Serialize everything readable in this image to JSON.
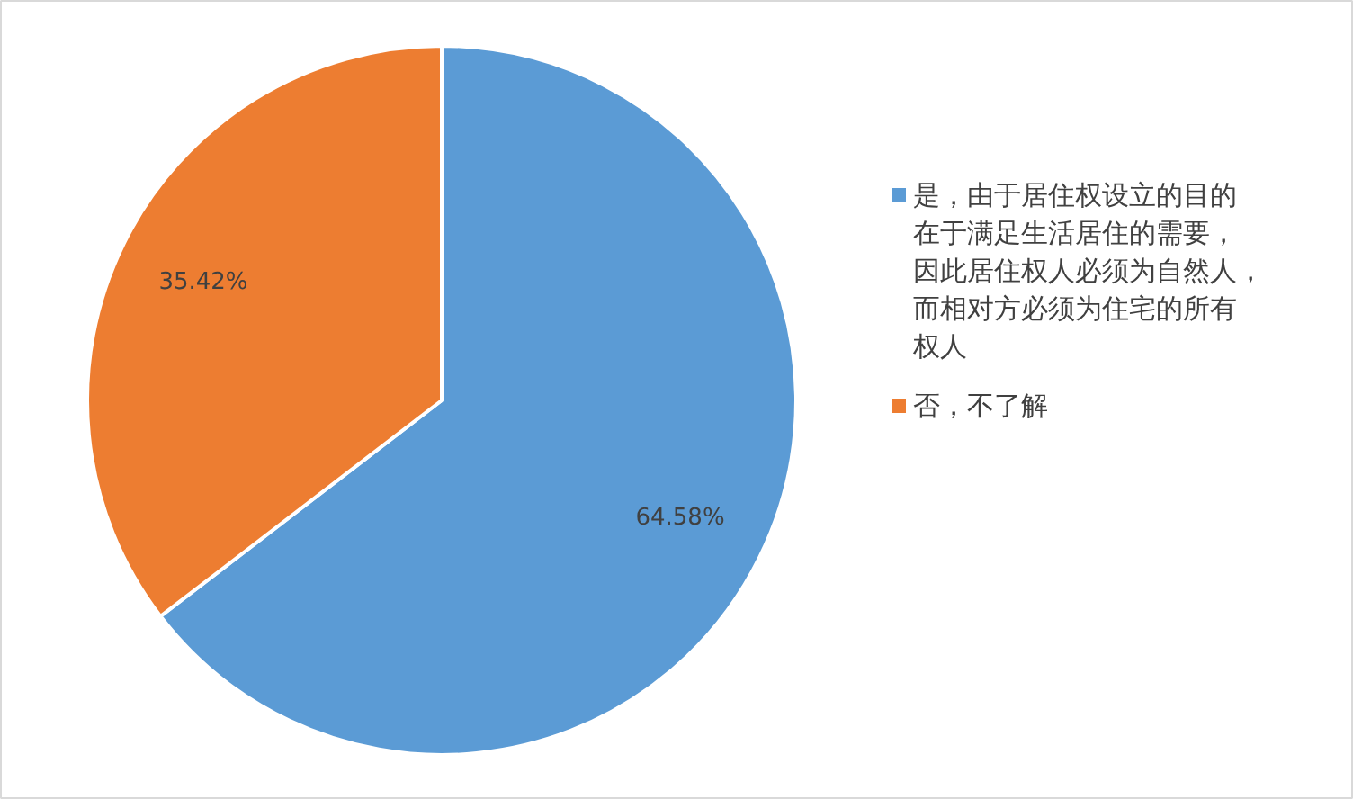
{
  "chart_data": {
    "type": "pie",
    "categories": [
      "是，由于居住权设立的目的在于满足生活居住的需要，因此居住权人必须为自然人，而相对方必须为住宅的所有权人",
      "否，不了解"
    ],
    "values": [
      64.58,
      35.42
    ],
    "colors": [
      "#5b9bd5",
      "#ed7d31"
    ],
    "value_labels": [
      "64.58%",
      "35.42%"
    ],
    "legend": "right"
  }
}
